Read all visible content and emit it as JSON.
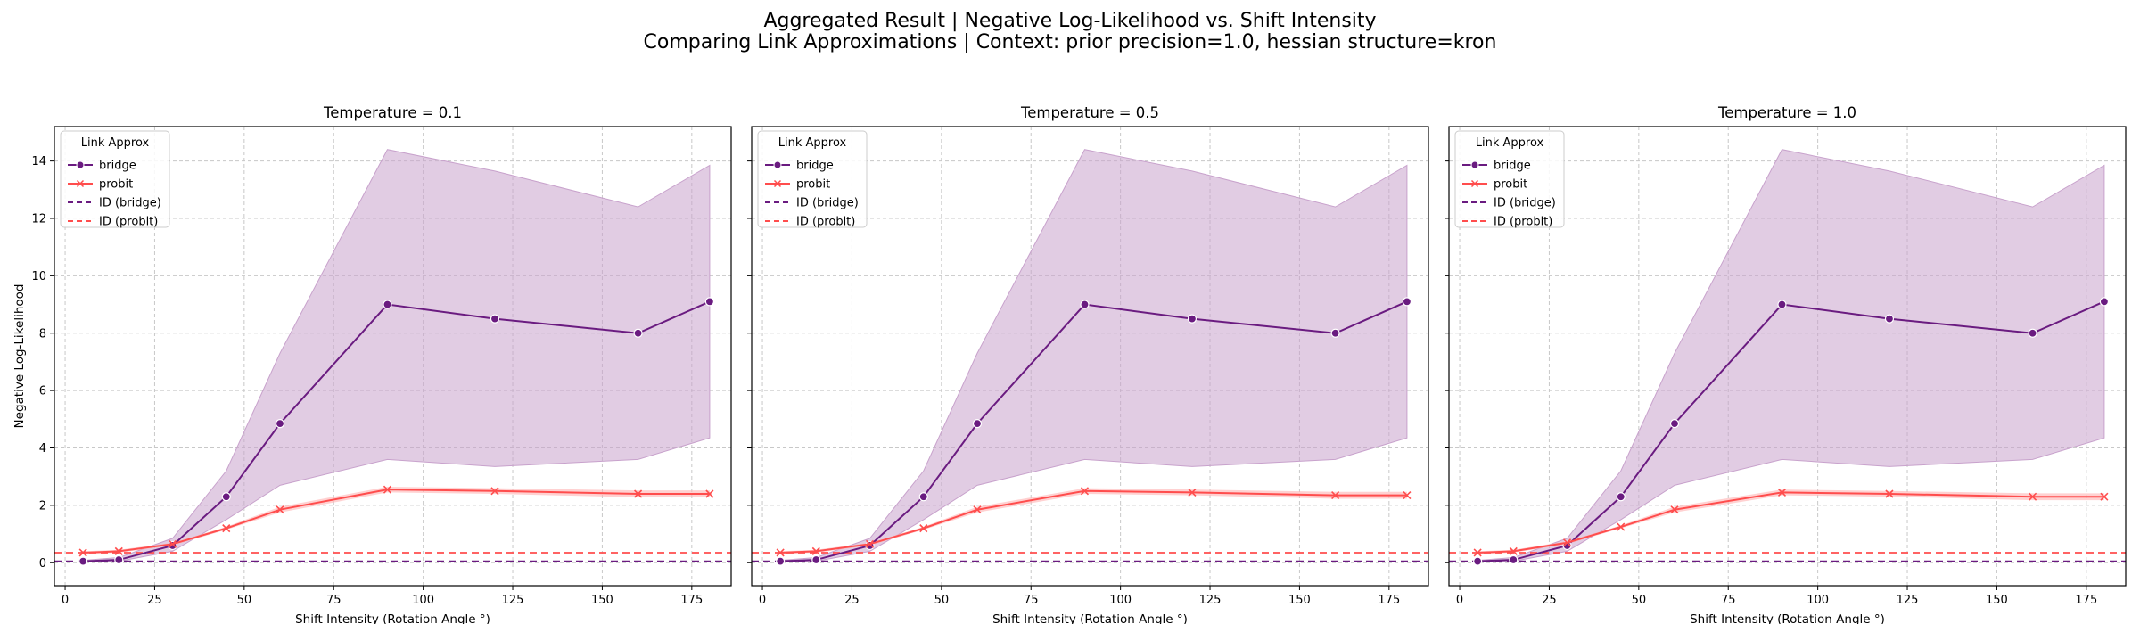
{
  "figure": {
    "title_line1": "Aggregated Result | Negative Log-Likelihood vs. Shift Intensity",
    "title_line2": "Comparing Link Approximations | Context: prior precision=1.0, hessian structure=kron"
  },
  "colors": {
    "bridge": "#6a1b80",
    "bridge_band": "#c8a2cc",
    "probit": "#ff4d4d",
    "probit_band": "#ffb3b3",
    "grid": "#c8c8c8"
  },
  "chart_data": [
    {
      "type": "line",
      "title": "Temperature = 0.1",
      "xlabel": "Shift Intensity (Rotation Angle °)",
      "ylabel": "Negative Log-Likelihood",
      "xlim": [
        -3,
        186
      ],
      "ylim": [
        -0.8,
        15.2
      ],
      "xticks": [
        0,
        25,
        50,
        75,
        100,
        125,
        150,
        175
      ],
      "yticks": [
        0,
        2,
        4,
        6,
        8,
        10,
        12,
        14
      ],
      "grid": true,
      "legend": {
        "title": "Link Approx",
        "placement": "top-left",
        "entries": [
          "bridge",
          "probit",
          "ID (bridge)",
          "ID (probit)"
        ]
      },
      "x": [
        5,
        15,
        30,
        45,
        60,
        90,
        120,
        160,
        180
      ],
      "series": [
        {
          "name": "bridge",
          "marker": "circle",
          "values": [
            0.05,
            0.1,
            0.6,
            2.3,
            4.85,
            9.0,
            8.5,
            8.0,
            9.1
          ],
          "lower": [
            0.02,
            0.05,
            0.4,
            1.5,
            2.7,
            3.6,
            3.35,
            3.6,
            4.35
          ],
          "upper": [
            0.08,
            0.18,
            0.85,
            3.2,
            7.3,
            14.4,
            13.65,
            12.4,
            13.85
          ]
        },
        {
          "name": "probit",
          "marker": "x",
          "values": [
            0.35,
            0.4,
            0.65,
            1.2,
            1.85,
            2.55,
            2.5,
            2.4,
            2.4
          ],
          "lower": [
            0.3,
            0.35,
            0.6,
            1.15,
            1.75,
            2.45,
            2.4,
            2.28,
            2.28
          ],
          "upper": [
            0.4,
            0.45,
            0.7,
            1.25,
            1.95,
            2.65,
            2.6,
            2.52,
            2.52
          ]
        }
      ],
      "hlines": [
        {
          "name": "ID (bridge)",
          "value": 0.05
        },
        {
          "name": "ID (probit)",
          "value": 0.35
        }
      ]
    },
    {
      "type": "line",
      "title": "Temperature = 0.5",
      "xlabel": "Shift Intensity (Rotation Angle °)",
      "ylabel": "",
      "xlim": [
        -3,
        186
      ],
      "ylim": [
        -0.8,
        15.2
      ],
      "xticks": [
        0,
        25,
        50,
        75,
        100,
        125,
        150,
        175
      ],
      "yticks": [
        0,
        2,
        4,
        6,
        8,
        10,
        12,
        14
      ],
      "grid": true,
      "legend": {
        "title": "Link Approx",
        "placement": "top-left",
        "entries": [
          "bridge",
          "probit",
          "ID (bridge)",
          "ID (probit)"
        ]
      },
      "x": [
        5,
        15,
        30,
        45,
        60,
        90,
        120,
        160,
        180
      ],
      "series": [
        {
          "name": "bridge",
          "marker": "circle",
          "values": [
            0.05,
            0.1,
            0.6,
            2.3,
            4.85,
            9.0,
            8.5,
            8.0,
            9.1
          ],
          "lower": [
            0.02,
            0.05,
            0.4,
            1.5,
            2.7,
            3.6,
            3.35,
            3.6,
            4.35
          ],
          "upper": [
            0.08,
            0.18,
            0.85,
            3.2,
            7.3,
            14.4,
            13.65,
            12.4,
            13.85
          ]
        },
        {
          "name": "probit",
          "marker": "x",
          "values": [
            0.35,
            0.4,
            0.65,
            1.2,
            1.85,
            2.5,
            2.45,
            2.35,
            2.35
          ],
          "lower": [
            0.3,
            0.35,
            0.6,
            1.15,
            1.75,
            2.4,
            2.35,
            2.23,
            2.23
          ],
          "upper": [
            0.4,
            0.45,
            0.7,
            1.25,
            1.95,
            2.6,
            2.55,
            2.47,
            2.47
          ]
        }
      ],
      "hlines": [
        {
          "name": "ID (bridge)",
          "value": 0.05
        },
        {
          "name": "ID (probit)",
          "value": 0.35
        }
      ]
    },
    {
      "type": "line",
      "title": "Temperature = 1.0",
      "xlabel": "Shift Intensity (Rotation Angle °)",
      "ylabel": "",
      "xlim": [
        -3,
        186
      ],
      "ylim": [
        -0.8,
        15.2
      ],
      "xticks": [
        0,
        25,
        50,
        75,
        100,
        125,
        150,
        175
      ],
      "yticks": [
        0,
        2,
        4,
        6,
        8,
        10,
        12,
        14
      ],
      "grid": true,
      "legend": {
        "title": "Link Approx",
        "placement": "top-left",
        "entries": [
          "bridge",
          "probit",
          "ID (bridge)",
          "ID (probit)"
        ]
      },
      "x": [
        5,
        15,
        30,
        45,
        60,
        90,
        120,
        160,
        180
      ],
      "series": [
        {
          "name": "bridge",
          "marker": "circle",
          "values": [
            0.05,
            0.1,
            0.6,
            2.3,
            4.85,
            9.0,
            8.5,
            8.0,
            9.1
          ],
          "lower": [
            0.02,
            0.05,
            0.4,
            1.5,
            2.7,
            3.6,
            3.35,
            3.6,
            4.35
          ],
          "upper": [
            0.08,
            0.18,
            0.85,
            3.2,
            7.3,
            14.4,
            13.65,
            12.4,
            13.85
          ]
        },
        {
          "name": "probit",
          "marker": "x",
          "values": [
            0.35,
            0.4,
            0.7,
            1.25,
            1.85,
            2.45,
            2.4,
            2.3,
            2.3
          ],
          "lower": [
            0.3,
            0.35,
            0.65,
            1.2,
            1.75,
            2.35,
            2.3,
            2.18,
            2.18
          ],
          "upper": [
            0.4,
            0.45,
            0.75,
            1.3,
            1.95,
            2.55,
            2.5,
            2.42,
            2.42
          ]
        }
      ],
      "hlines": [
        {
          "name": "ID (bridge)",
          "value": 0.05
        },
        {
          "name": "ID (probit)",
          "value": 0.35
        }
      ]
    }
  ]
}
